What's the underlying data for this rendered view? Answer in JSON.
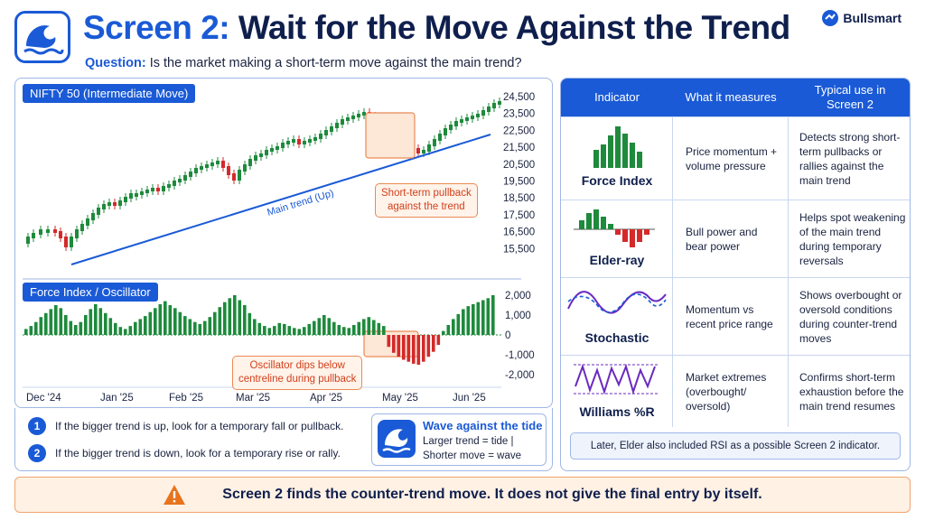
{
  "header": {
    "logo_icon": "wave-icon",
    "title_accent": "Screen 2:",
    "title_rest": "Wait for the Move Against the Trend",
    "question_label": "Question:",
    "question_text": "Is the market making a short-term move against the main trend?",
    "brand": "Bullsmart"
  },
  "colors": {
    "accent": "#1a5ad6",
    "bull": "#1e8a3c",
    "bear": "#d42a2a",
    "callout": "#e98a55"
  },
  "price_chart": {
    "title": "NIFTY 50 (Intermediate Move)",
    "y_ticks": [
      "24,500",
      "23,500",
      "22,500",
      "21,500",
      "20,500",
      "19,500",
      "18,500",
      "17,500",
      "16,500",
      "15,500"
    ],
    "trend_label": "Main trend (Up)",
    "callout": [
      "Short-term pullback",
      "against the trend"
    ]
  },
  "oscillator": {
    "title": "Force Index / Oscillator",
    "y_ticks": [
      "2,000",
      "1,000",
      "0",
      "-1,000",
      "-2,000"
    ],
    "callout": [
      "Oscillator dips below",
      "centreline during pullback"
    ]
  },
  "x_axis": [
    "Dec '24",
    "Jan '25",
    "Feb '25",
    "Mar '25",
    "Apr '25",
    "May '25",
    "Jun '25"
  ],
  "chart_data": {
    "type": "bar",
    "title": "Force Index / Oscillator",
    "ylim": [
      -2000,
      2000
    ],
    "values": [
      300,
      450,
      650,
      900,
      1100,
      1300,
      1500,
      1350,
      1000,
      700,
      500,
      650,
      1000,
      1300,
      1550,
      1350,
      1100,
      850,
      600,
      400,
      300,
      450,
      650,
      800,
      950,
      1150,
      1350,
      1550,
      1700,
      1500,
      1350,
      1150,
      950,
      800,
      650,
      550,
      700,
      900,
      1150,
      1400,
      1650,
      1850,
      2000,
      1750,
      1500,
      1100,
      800,
      600,
      450,
      350,
      450,
      600,
      550,
      450,
      350,
      300,
      400,
      550,
      700,
      850,
      1000,
      850,
      650,
      500,
      400,
      350,
      500,
      650,
      800,
      900,
      750,
      600,
      450,
      -600,
      -900,
      -1100,
      -1250,
      -1350,
      -1450,
      -1500,
      -1350,
      -1100,
      -850,
      -500,
      200,
      500,
      800,
      1050,
      1300,
      1450,
      1550,
      1650,
      1750,
      1850,
      2000
    ]
  },
  "table": {
    "headers": [
      "Indicator",
      "What it measures",
      "Typical use in Screen 2"
    ],
    "rows": [
      {
        "name": "Force Index",
        "icon": "force-index-icon",
        "measure": "Price momentum + volume pressure",
        "use": "Detects strong short-term pullbacks or rallies against the main trend"
      },
      {
        "name": "Elder-ray",
        "icon": "elder-ray-icon",
        "measure": "Bull power and bear power",
        "use": "Helps spot weakening of the main trend during temporary reversals"
      },
      {
        "name": "Stochastic",
        "icon": "stochastic-icon",
        "measure": "Momentum vs recent price range",
        "use": "Shows overbought or oversold conditions during counter-trend moves"
      },
      {
        "name": "Williams %R",
        "icon": "williams-r-icon",
        "measure": "Market extremes (overbought/ oversold)",
        "use": "Confirms short-term exhaustion before the main trend resumes"
      }
    ],
    "note": "Later, Elder also included RSI as a possible Screen 2 indicator."
  },
  "rules": [
    {
      "num": "1",
      "text": "If the bigger trend is up, look for a temporary fall or pullback."
    },
    {
      "num": "2",
      "text": "If the bigger trend is down, look for a temporary rise or rally."
    }
  ],
  "wave_card": {
    "title": "Wave against the tide",
    "line1": "Larger trend = tide |",
    "line2": "Shorter move = wave"
  },
  "footer": {
    "text": "Screen 2 finds the counter-trend move. It does not give the final entry by itself."
  }
}
